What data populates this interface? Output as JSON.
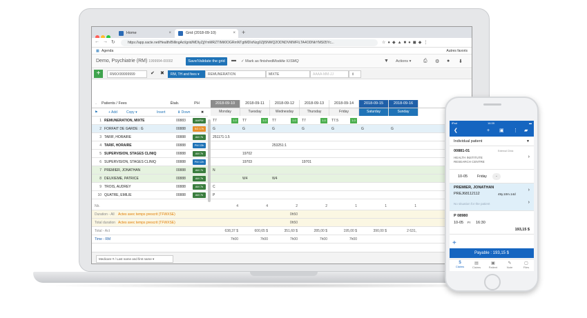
{
  "browser": {
    "tabs": [
      {
        "label": "Home"
      },
      {
        "label": "Grid (2018-09-10)"
      }
    ],
    "url": "https://app.xacte.net/Health/BillingAct/grid/MDIyZjjYmMRZTIMiI0OGRmNTgtMDIxNzg0ZjI5NWQ2ODNDVMWFILTA4ODNkYMS05Yc...",
    "bookmark": "Agenda",
    "other_bookmarks": "Autres favoris"
  },
  "app": {
    "title": "Demo, Psychiatrie (RM)",
    "title_id": "1999994-00002",
    "save_button": "Save/Validate the grid",
    "mark_finished": "Mark as finished",
    "model": "Modèle IUSMQ",
    "actions": "Actions"
  },
  "toolbar": {
    "doctor_field": "RMXX99999999",
    "mode_field": "RM, TH and fees",
    "remuneration_field": "REMUNERATION",
    "mixte_field": "MIXTE",
    "time_placeholder": "AAAA-MM-JJ"
  },
  "grid": {
    "headers": {
      "dot": ".",
      "patients": "Patients / Fees",
      "etab": "Étab.",
      "ph": "PH"
    },
    "actions": {
      "add": "Add",
      "copy": "Copy",
      "insert": "Insert",
      "down": "Down"
    },
    "dates": [
      "2018-09-10",
      "2018-09-11",
      "2018-09-12",
      "2018-09-13",
      "2018-09-14",
      "2018-09-15",
      "2018-09-16"
    ],
    "days": [
      "Monday",
      "Tuesday",
      "Wednesday",
      "Thursday",
      "Friday",
      "Saturday",
      "Sunday"
    ],
    "rows": [
      {
        "n": "1",
        "name": "REMUNERATION, MIXTE",
        "code": "00883",
        "tag": "AMPM",
        "tagcolor": "#3a7d3e",
        "cells": [
          "T7",
          "T7",
          "T7",
          "T7",
          "T7.5",
          "",
          ""
        ]
      },
      {
        "n": "2",
        "name": "FORFAIT DE GARDE : G",
        "code": "00888",
        "tag": "SG 17h",
        "tagcolor": "#e8912c",
        "cells": [
          "G",
          "G",
          "G",
          "G",
          "G",
          "G",
          "G"
        ]
      },
      {
        "n": "3",
        "name": "TARIF, HORAIRE",
        "code": "00888",
        "tag": "AM 7h",
        "tagcolor": "#3a7d3e",
        "cells": [
          "251171:1.5",
          "",
          "",
          "",
          "",
          "",
          ""
        ]
      },
      {
        "n": "4",
        "name": "TARIF, HORAIRE",
        "code": "00888",
        "tag": "PM 13h",
        "tagcolor": "#1f73b7",
        "cells": [
          "",
          "",
          "253251:1",
          "",
          "",
          "",
          ""
        ]
      },
      {
        "n": "5",
        "name": "SUPERVISION, STAGES CLINIQ",
        "code": "00888",
        "tag": "AM 7h",
        "tagcolor": "#3a7d3e",
        "cells": [
          "",
          "19702",
          "",
          "",
          "",
          "",
          ""
        ]
      },
      {
        "n": "6",
        "name": "SUPERVISION, STAGES CLINIQ",
        "code": "00888",
        "tag": "PM 12h",
        "tagcolor": "#1f73b7",
        "cells": [
          "",
          "19703",
          "",
          "19701",
          "",
          "",
          ""
        ]
      },
      {
        "n": "7",
        "name": "PREMIER, JONATHAN",
        "code": "00888",
        "tag": "AM 7h",
        "tagcolor": "#3a7d3e",
        "cells": [
          "N",
          "",
          "",
          "",
          "",
          "",
          ""
        ],
        "link": "PREJ681121"
      },
      {
        "n": "8",
        "name": "DEUXIEME, PATRICE",
        "code": "00888",
        "tag": "AM 7h",
        "tagcolor": "#3a7d3e",
        "cells": [
          "",
          "W4",
          "W4",
          "",
          "",
          "",
          ""
        ],
        "link": "DEUP580512"
      },
      {
        "n": "9",
        "name": "TROIS, AUDREY",
        "code": "00888",
        "tag": "AM 7h",
        "tagcolor": "#3a7d3e",
        "cells": [
          "C",
          "",
          "",
          "",
          "",
          "",
          ""
        ],
        "link": "TROA505910"
      },
      {
        "n": "10",
        "name": "QUATRE, EMILIE",
        "code": "00888",
        "tag": "AM 7h",
        "tagcolor": "#3a7d3e",
        "cells": [
          "P",
          "",
          "",
          "",
          "",
          "",
          ""
        ],
        "link": "QUAE475122"
      }
    ],
    "nb_label": "Nb.",
    "nb": [
      "4",
      "4",
      "2",
      "2",
      "1",
      "1",
      "1"
    ],
    "duration_label": "Duration - All",
    "duration_highlight": "Actes avec temps prescrit (TFWXSE)",
    "duration": [
      "",
      "",
      "0h50",
      "",
      "",
      "",
      ""
    ],
    "total_duration_label": "Total duration",
    "total_duration": [
      "",
      "",
      "0h50",
      "",
      "",
      "",
      ""
    ],
    "total_label": "Total - Act",
    "totals": [
      "638,37 $",
      "600,65 $",
      "351,60 $",
      "285,00 $",
      "195,00 $",
      "390,00 $",
      "2 631,"
    ],
    "time_label": "Time - RM",
    "times": [
      "7h00",
      "7h00",
      "7h00",
      "7h00",
      "7h00",
      "",
      ""
    ]
  },
  "footer": {
    "search_select": "Medicare # / Last name and first name"
  },
  "phone": {
    "status_left": "iPad",
    "status_time": "16:39",
    "patient_type": "Individual patient",
    "patient_code": "00881-01",
    "external_clinic": "External Clinic",
    "institute_line1": "HEALTH INSTITUTE",
    "institute_line2": "RESEARCH CENTRE",
    "date": "10-05",
    "day": "Friday",
    "patient_name": "PREMIER, JONATHAN",
    "patient_id": "PREJ68112112",
    "patient_age": "49y.10m.14d",
    "no_situation": "No situation for the patient",
    "code": "P 08980",
    "code_date": "10-05",
    "code_day": "Fr",
    "code_time": "16:30",
    "amount": "193,15 $",
    "payable": "Payable : 193,15 $",
    "tabs": [
      "Claims",
      "Claims",
      "Patient",
      "Note",
      "Files"
    ]
  }
}
